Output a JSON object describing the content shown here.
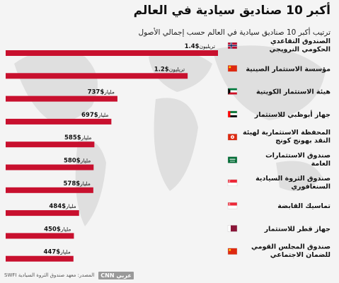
{
  "header": {
    "title": "أكبر 10 صناديق سيادية في العالم",
    "subtitle": "ترتيب أكبر 10 صناديق سيادية في العالم حسب إجمالي الأصول"
  },
  "footer": {
    "source": "المصدر: معهد صندوق الثروة السيادية SWFI",
    "logo": "CNN عربي"
  },
  "colors": {
    "bar": "#c8102e",
    "background": "#f4f4f4"
  },
  "chart_data": {
    "type": "bar",
    "orientation": "horizontal",
    "values": [
      1400,
      1200,
      737,
      697,
      585,
      580,
      578,
      484,
      450,
      447
    ],
    "unit_values": "billion USD",
    "data_labels": [
      {
        "amount": "$1.4",
        "unit": "تريليون"
      },
      {
        "amount": "$1.2",
        "unit": "تريليون"
      },
      {
        "amount": "$737",
        "unit": "مليار"
      },
      {
        "amount": "$697",
        "unit": "مليار"
      },
      {
        "amount": "$585",
        "unit": "مليار"
      },
      {
        "amount": "$580",
        "unit": "مليار"
      },
      {
        "amount": "$578",
        "unit": "مليار"
      },
      {
        "amount": "$484",
        "unit": "مليار"
      },
      {
        "amount": "$450",
        "unit": "مليار"
      },
      {
        "amount": "$447",
        "unit": "مليار"
      }
    ],
    "categories": [
      [
        "الصندوق التقاعدي",
        "الحكومي النرويجي"
      ],
      [
        "مؤسسة الاستثمار الصينية"
      ],
      [
        "هيئة الاستثمار الكويتية"
      ],
      [
        "جهاز أبوظبي للاستثمار"
      ],
      [
        "المحفظة الاستثمارية لهيئة",
        "النقد بهونج كونج"
      ],
      [
        "صندوق الاستثمارات",
        "العامة"
      ],
      [
        "صندوق الثروة السيادية",
        "السنغافوري"
      ],
      [
        "تماسيك القابضة"
      ],
      [
        "جهاز قطر للاستثمار"
      ],
      [
        "صندوق المجلس القومي",
        "للضمان الاجتماعي"
      ]
    ],
    "flags": [
      "norway-flag",
      "china-flag",
      "kuwait-flag",
      "uae-flag",
      "hong-kong-flag",
      "saudi-flag",
      "singapore-flag",
      "singapore-flag",
      "qatar-flag",
      "china-flag"
    ],
    "xlim": [
      0,
      1400
    ],
    "grid": false,
    "legend": "none"
  }
}
